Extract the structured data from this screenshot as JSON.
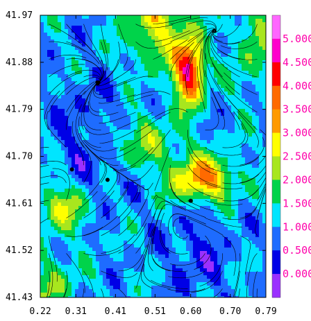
{
  "chart_data": {
    "type": "heatmap",
    "title": "",
    "xlabel": "",
    "ylabel": "",
    "xlim": [
      0.22,
      0.79
    ],
    "ylim": [
      41.43,
      41.97
    ],
    "x_ticks": [
      "0.22",
      "0.31",
      "0.41",
      "0.51",
      "0.60",
      "0.70",
      "0.79"
    ],
    "y_ticks": [
      "41.97",
      "41.88",
      "41.79",
      "41.70",
      "41.61",
      "41.52",
      "41.43"
    ],
    "overlay": "streamlines",
    "points": [
      {
        "x": 0.39,
        "y": 41.655
      },
      {
        "x": 0.6,
        "y": 41.615
      },
      {
        "x": 0.3,
        "y": 41.675
      }
    ],
    "colorbar": {
      "levels": [
        0.0,
        0.5,
        1.0,
        1.5,
        2.0,
        2.5,
        3.0,
        3.5,
        4.0,
        4.5,
        5.0
      ],
      "labels": [
        "0.000",
        "0.500",
        "1.000",
        "1.500",
        "2.000",
        "2.500",
        "3.000",
        "3.500",
        "4.000",
        "4.500",
        "5.000"
      ],
      "colors": [
        "#9b30ff",
        "#0000e6",
        "#1e6cff",
        "#00e5ff",
        "#00d34a",
        "#a8e61e",
        "#ffff00",
        "#ff9a00",
        "#ff6a00",
        "#ff0000",
        "#ff00cc",
        "#ff66ff"
      ]
    }
  }
}
